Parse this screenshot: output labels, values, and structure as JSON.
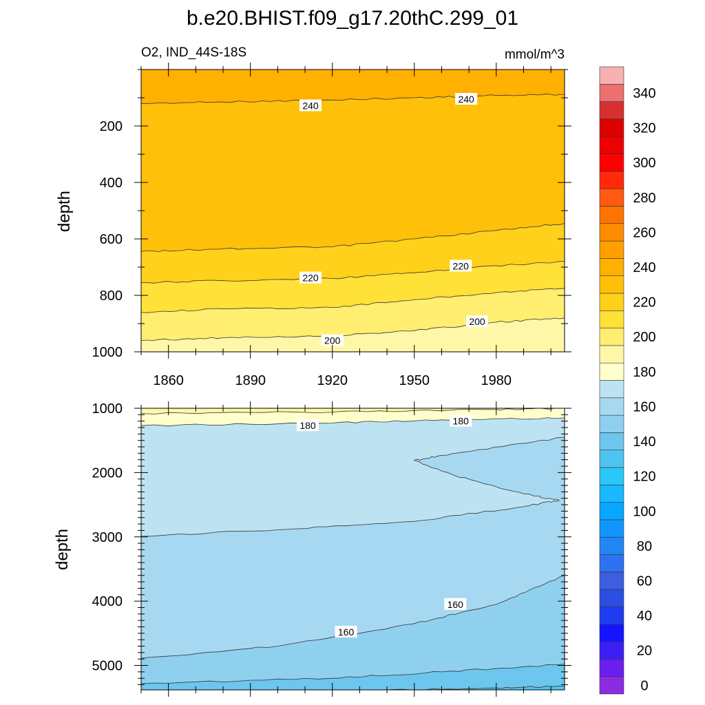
{
  "title": "b.e20.BHIST.f09_g17.20thC.299_01",
  "chart_data": {
    "type": "heatmap",
    "title": "b.e20.BHIST.f09_g17.20thC.299_01",
    "left_label": "O2, IND_44S-18S",
    "right_label": "mmol/m^3",
    "ylabel": "depth",
    "x_ticks": [
      1860,
      1890,
      1920,
      1950,
      1980
    ],
    "xlim": [
      1850,
      2005
    ],
    "panels": [
      {
        "name": "upper",
        "ylim": [
          0,
          1000
        ],
        "y_ticks": [
          200,
          400,
          600,
          800,
          1000
        ],
        "contours": [
          {
            "level": 240,
            "label": "240",
            "points": [
              [
                1850,
                120
              ],
              [
                1880,
                115
              ],
              [
                1920,
                108
              ],
              [
                1950,
                100
              ],
              [
                1980,
                92
              ],
              [
                2005,
                88
              ]
            ]
          },
          {
            "level": 230,
            "label": "",
            "points": [
              [
                1850,
                645
              ],
              [
                1880,
                635
              ],
              [
                1920,
                628
              ],
              [
                1950,
                600
              ],
              [
                1980,
                570
              ],
              [
                2005,
                545
              ]
            ]
          },
          {
            "level": 220,
            "label": "220",
            "points": [
              [
                1850,
                755
              ],
              [
                1880,
                748
              ],
              [
                1920,
                740
              ],
              [
                1950,
                720
              ],
              [
                1980,
                695
              ],
              [
                2005,
                680
              ]
            ]
          },
          {
            "level": 210,
            "label": "",
            "points": [
              [
                1850,
                860
              ],
              [
                1880,
                848
              ],
              [
                1920,
                843
              ],
              [
                1950,
                815
              ],
              [
                1980,
                790
              ],
              [
                2005,
                775
              ]
            ]
          },
          {
            "level": 200,
            "label": "200",
            "points": [
              [
                1850,
                960
              ],
              [
                1880,
                950
              ],
              [
                1920,
                943
              ],
              [
                1950,
                925
              ],
              [
                1980,
                895
              ],
              [
                2005,
                880
              ]
            ]
          }
        ],
        "labels": [
          {
            "text": "240",
            "x": 1912,
            "y": 128
          },
          {
            "text": "240",
            "x": 1969,
            "y": 105
          },
          {
            "text": "220",
            "x": 1912,
            "y": 738
          },
          {
            "text": "220",
            "x": 1967,
            "y": 696
          },
          {
            "text": "200",
            "x": 1920,
            "y": 960
          },
          {
            "text": "200",
            "x": 1973,
            "y": 893
          }
        ]
      },
      {
        "name": "lower",
        "ylim": [
          1000,
          5380
        ],
        "y_ticks": [
          1000,
          2000,
          3000,
          4000,
          5000
        ],
        "contours": [
          {
            "level": 190,
            "label": "",
            "points": [
              [
                1850,
                1080
              ],
              [
                1920,
                1060
              ],
              [
                1980,
                1020
              ],
              [
                2005,
                1000
              ]
            ]
          },
          {
            "level": 180,
            "label": "180",
            "points": [
              [
                1850,
                1270
              ],
              [
                1920,
                1230
              ],
              [
                1960,
                1180
              ],
              [
                2005,
                1150
              ]
            ]
          },
          {
            "level": 170,
            "label": "",
            "points": [
              [
                1850,
                2990
              ],
              [
                1900,
                2890
              ],
              [
                1950,
                2760
              ],
              [
                1990,
                2530
              ],
              [
                2003,
                2430
              ],
              [
                1990,
                2330
              ],
              [
                1965,
                2050
              ],
              [
                1950,
                1810
              ],
              [
                1965,
                1700
              ],
              [
                2005,
                1450
              ]
            ]
          },
          {
            "level": 160,
            "label": "160",
            "points": [
              [
                1850,
                4890
              ],
              [
                1900,
                4700
              ],
              [
                1950,
                4350
              ],
              [
                1980,
                4050
              ],
              [
                2005,
                3600
              ]
            ]
          },
          {
            "level": 150,
            "label": "",
            "points": [
              [
                1850,
                5280
              ],
              [
                1920,
                5200
              ],
              [
                1960,
                5100
              ],
              [
                2005,
                4980
              ]
            ]
          },
          {
            "level": 140,
            "label": "",
            "points": [
              [
                1940,
                5380
              ],
              [
                1980,
                5350
              ],
              [
                2005,
                5320
              ]
            ]
          }
        ],
        "labels": [
          {
            "text": "180",
            "x": 1911,
            "y": 1270
          },
          {
            "text": "180",
            "x": 1967,
            "y": 1200
          },
          {
            "text": "160",
            "x": 1925,
            "y": 4480
          },
          {
            "text": "160",
            "x": 1965,
            "y": 4050
          }
        ]
      }
    ],
    "colorbar": {
      "levels": [
        0,
        10,
        20,
        30,
        40,
        50,
        60,
        70,
        80,
        90,
        100,
        110,
        120,
        130,
        140,
        150,
        160,
        170,
        180,
        190,
        200,
        210,
        220,
        230,
        240,
        250,
        260,
        270,
        280,
        290,
        300,
        310,
        320,
        330,
        340,
        350
      ],
      "tick_labels": [
        "0",
        "20",
        "40",
        "60",
        "80",
        "100",
        "120",
        "140",
        "160",
        "180",
        "200",
        "220",
        "240",
        "260",
        "280",
        "300",
        "320",
        "340"
      ],
      "colors": [
        "#8c2be2",
        "#6a1ff0",
        "#3d1ef5",
        "#1414ff",
        "#1f3df0",
        "#2b4fe0",
        "#3b5fe0",
        "#2d72f0",
        "#2386f5",
        "#1196ff",
        "#07a6ff",
        "#1ab8ff",
        "#2ac8f8",
        "#4fc4f0",
        "#6cc6ee",
        "#90d0ef",
        "#a7d8f1",
        "#bde3f2",
        "#ffffcc",
        "#fff7a8",
        "#ffee70",
        "#ffe138",
        "#ffd11a",
        "#ffc00a",
        "#ffb000",
        "#ffa000",
        "#ff8c00",
        "#ff7400",
        "#ff5a10",
        "#ff2a0a",
        "#ff0000",
        "#ee0000",
        "#dd0000",
        "#d63030",
        "#ec7070",
        "#f8b0b0"
      ]
    }
  }
}
